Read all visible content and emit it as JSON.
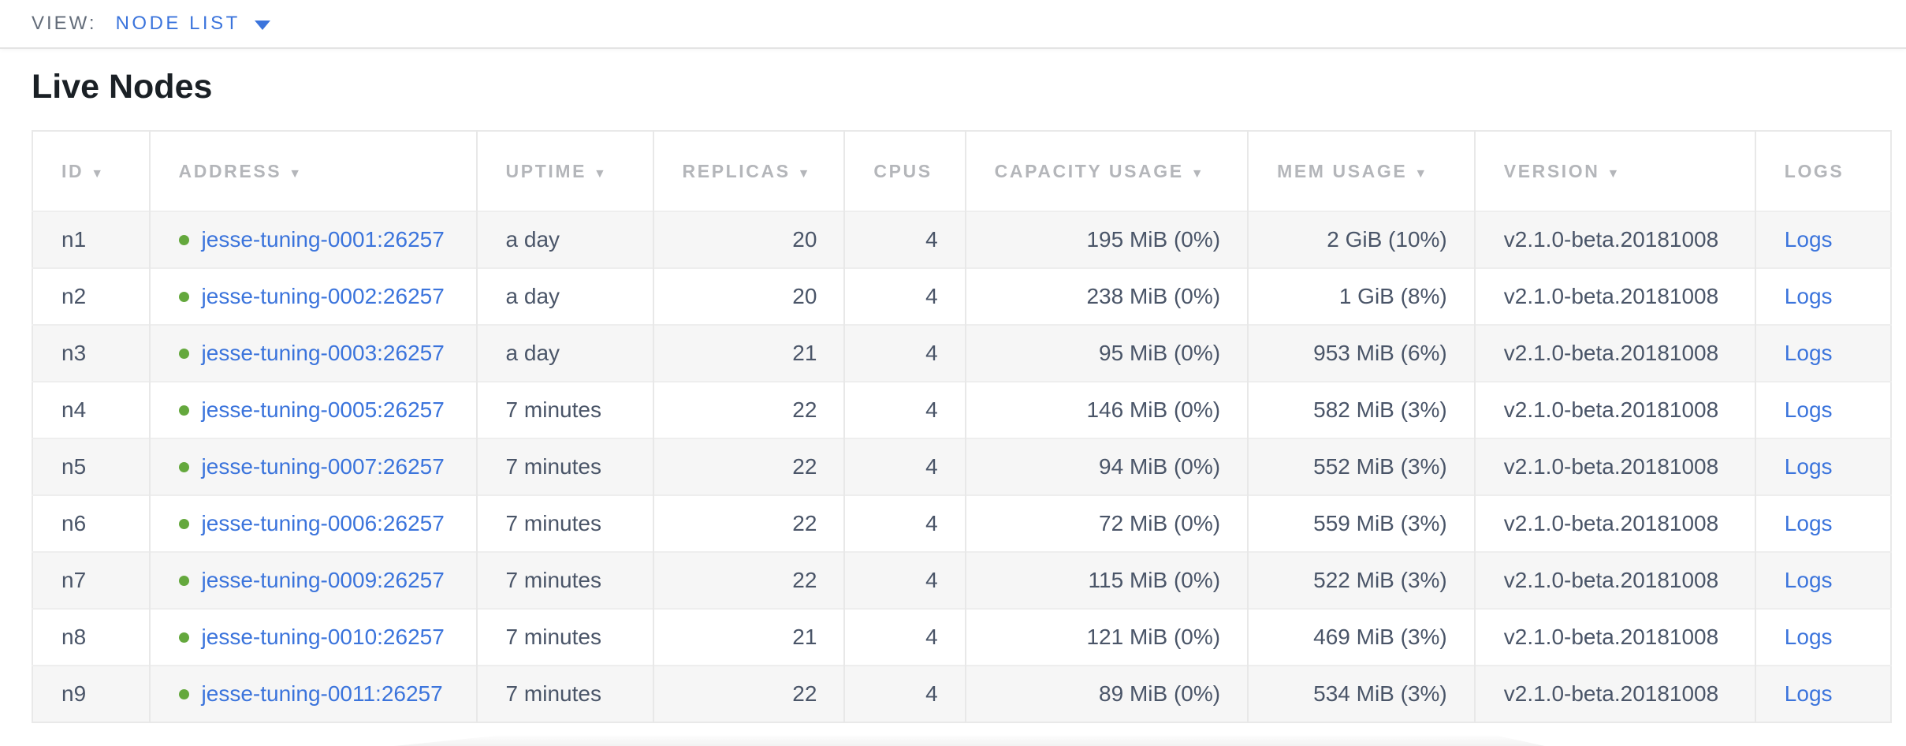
{
  "view_bar": {
    "label": "VIEW:",
    "selected_view": "NODE LIST",
    "dropdown_icon": "caret-down-icon"
  },
  "page": {
    "title": "Live Nodes"
  },
  "table": {
    "columns": [
      {
        "label": "ID",
        "sortable": true,
        "align": "left"
      },
      {
        "label": "ADDRESS",
        "sortable": true,
        "align": "left"
      },
      {
        "label": "UPTIME",
        "sortable": true,
        "align": "left"
      },
      {
        "label": "REPLICAS",
        "sortable": true,
        "align": "right"
      },
      {
        "label": "CPUS",
        "sortable": false,
        "align": "right"
      },
      {
        "label": "CAPACITY USAGE",
        "sortable": true,
        "align": "right"
      },
      {
        "label": "MEM USAGE",
        "sortable": true,
        "align": "right"
      },
      {
        "label": "VERSION",
        "sortable": true,
        "align": "left"
      },
      {
        "label": "LOGS",
        "sortable": false,
        "align": "left"
      }
    ],
    "rows": [
      {
        "id": "n1",
        "status_icon": "green-dot-icon",
        "address": "jesse-tuning-0001:26257",
        "uptime": "a day",
        "replicas": "20",
        "cpus": "4",
        "capacity_usage": "195 MiB (0%)",
        "mem_usage": "2 GiB (10%)",
        "version": "v2.1.0-beta.20181008",
        "logs": "Logs"
      },
      {
        "id": "n2",
        "status_icon": "green-dot-icon",
        "address": "jesse-tuning-0002:26257",
        "uptime": "a day",
        "replicas": "20",
        "cpus": "4",
        "capacity_usage": "238 MiB (0%)",
        "mem_usage": "1 GiB (8%)",
        "version": "v2.1.0-beta.20181008",
        "logs": "Logs"
      },
      {
        "id": "n3",
        "status_icon": "green-dot-icon",
        "address": "jesse-tuning-0003:26257",
        "uptime": "a day",
        "replicas": "21",
        "cpus": "4",
        "capacity_usage": "95 MiB (0%)",
        "mem_usage": "953 MiB (6%)",
        "version": "v2.1.0-beta.20181008",
        "logs": "Logs"
      },
      {
        "id": "n4",
        "status_icon": "green-dot-icon",
        "address": "jesse-tuning-0005:26257",
        "uptime": "7 minutes",
        "replicas": "22",
        "cpus": "4",
        "capacity_usage": "146 MiB (0%)",
        "mem_usage": "582 MiB (3%)",
        "version": "v2.1.0-beta.20181008",
        "logs": "Logs"
      },
      {
        "id": "n5",
        "status_icon": "green-dot-icon",
        "address": "jesse-tuning-0007:26257",
        "uptime": "7 minutes",
        "replicas": "22",
        "cpus": "4",
        "capacity_usage": "94 MiB (0%)",
        "mem_usage": "552 MiB (3%)",
        "version": "v2.1.0-beta.20181008",
        "logs": "Logs"
      },
      {
        "id": "n6",
        "status_icon": "green-dot-icon",
        "address": "jesse-tuning-0006:26257",
        "uptime": "7 minutes",
        "replicas": "22",
        "cpus": "4",
        "capacity_usage": "72 MiB (0%)",
        "mem_usage": "559 MiB (3%)",
        "version": "v2.1.0-beta.20181008",
        "logs": "Logs"
      },
      {
        "id": "n7",
        "status_icon": "green-dot-icon",
        "address": "jesse-tuning-0009:26257",
        "uptime": "7 minutes",
        "replicas": "22",
        "cpus": "4",
        "capacity_usage": "115 MiB (0%)",
        "mem_usage": "522 MiB (3%)",
        "version": "v2.1.0-beta.20181008",
        "logs": "Logs"
      },
      {
        "id": "n8",
        "status_icon": "green-dot-icon",
        "address": "jesse-tuning-0010:26257",
        "uptime": "7 minutes",
        "replicas": "21",
        "cpus": "4",
        "capacity_usage": "121 MiB (0%)",
        "mem_usage": "469 MiB (3%)",
        "version": "v2.1.0-beta.20181008",
        "logs": "Logs"
      },
      {
        "id": "n9",
        "status_icon": "green-dot-icon",
        "address": "jesse-tuning-0011:26257",
        "uptime": "7 minutes",
        "replicas": "22",
        "cpus": "4",
        "capacity_usage": "89 MiB (0%)",
        "mem_usage": "534 MiB (3%)",
        "version": "v2.1.0-beta.20181008",
        "logs": "Logs"
      }
    ]
  },
  "colors": {
    "link_blue": "#3b74dc",
    "live_dot_green": "#64a83d",
    "header_gray": "#b4b6ba",
    "cell_text": "#4a5568",
    "row_alt_bg": "#f6f6f6"
  }
}
